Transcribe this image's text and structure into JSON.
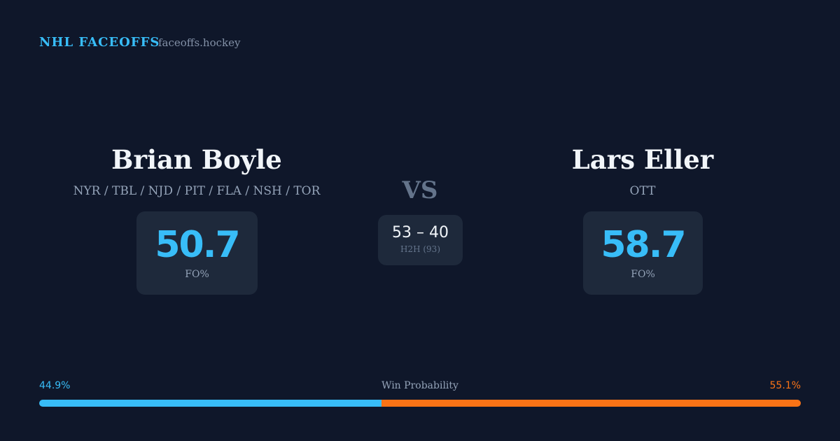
{
  "header": {
    "brand": "NHL FACEOFFS",
    "site": "faceoffs.hockey"
  },
  "players": [
    {
      "name": "Brian Boyle",
      "teams": "NYR / TBL / NJD / PIT / FLA / NSH / TOR",
      "fo_value": 50.7,
      "fo_label": "FO%"
    },
    {
      "name": "Lars Eller",
      "teams": "OTT",
      "fo_value": 58.7,
      "fo_label": "FO%"
    }
  ],
  "vs": "VS",
  "h2h": {
    "score": "53 – 40",
    "label": "H2H (93)"
  },
  "win_probability": {
    "label": "Win Probability",
    "left": {
      "value": 44.9,
      "value_label": "44.9%",
      "color": "#38bdf8"
    },
    "right": {
      "value": 55.1,
      "value_label": "55.1%",
      "color": "#f97316"
    }
  }
}
